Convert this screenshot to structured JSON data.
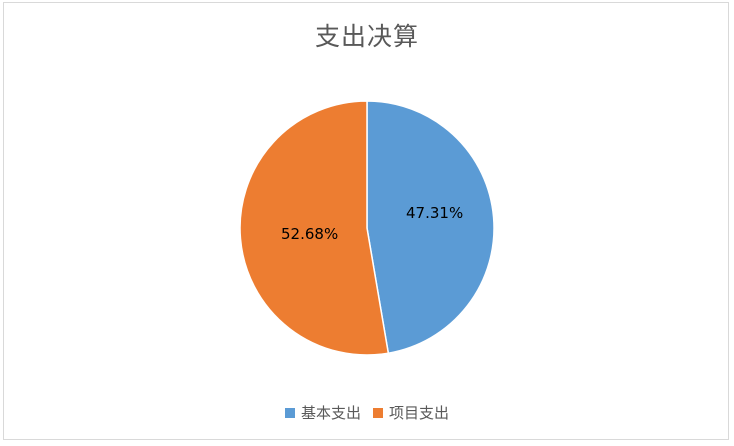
{
  "chart_data": {
    "type": "pie",
    "title": "支出决算",
    "categories": [
      "基本支出",
      "项目支出"
    ],
    "values": [
      47.31,
      52.68
    ],
    "data_labels": [
      "47.31%",
      "52.68%"
    ],
    "colors": [
      "#5b9bd5",
      "#ed7d31"
    ],
    "legend_position": "bottom"
  }
}
